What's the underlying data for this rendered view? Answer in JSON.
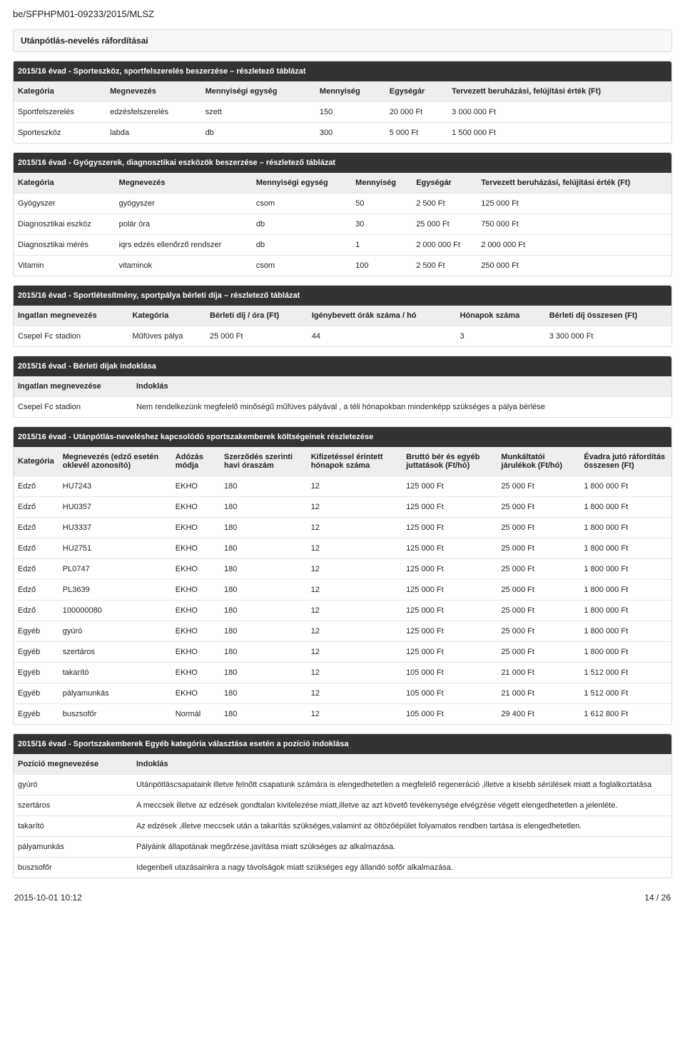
{
  "doc_id": "be/SFPHPM01-09233/2015/MLSZ",
  "main_heading": "Utánpótlás-nevelés ráfordításai",
  "sporteszk": {
    "title": "2015/16 évad - Sporteszköz, sportfelszerelés beszerzése – részletező táblázat",
    "headers": [
      "Kategória",
      "Megnevezés",
      "Mennyiségi egység",
      "Mennyiség",
      "Egységár",
      "Tervezett beruházási, felújítási érték (Ft)"
    ],
    "rows": [
      [
        "Sportfelszerelés",
        "edzésfelszerelés",
        "szett",
        "150",
        "20 000 Ft",
        "3 000 000 Ft"
      ],
      [
        "Sporteszköz",
        "labda",
        "db",
        "300",
        "5 000 Ft",
        "1 500 000 Ft"
      ]
    ]
  },
  "gyogyszer": {
    "title": "2015/16 évad - Gyógyszerek, diagnosztikai eszközök beszerzése – részletező táblázat",
    "headers": [
      "Kategória",
      "Megnevezés",
      "Mennyiségi egység",
      "Mennyiség",
      "Egységár",
      "Tervezett beruházási, felújítási érték (Ft)"
    ],
    "rows": [
      [
        "Gyógyszer",
        "gyógyszer",
        "csom",
        "50",
        "2 500 Ft",
        "125 000 Ft"
      ],
      [
        "Diagnosztikai eszköz",
        "polár óra",
        "db",
        "30",
        "25 000 Ft",
        "750 000 Ft"
      ],
      [
        "Diagnosztikai mérés",
        "iqrs edzés ellenőrző rendszer",
        "db",
        "1",
        "2 000 000 Ft",
        "2 000 000 Ft"
      ],
      [
        "Vitamin",
        "vitaminok",
        "csom",
        "100",
        "2 500 Ft",
        "250 000 Ft"
      ]
    ]
  },
  "berlet": {
    "title": "2015/16 évad - Sportlétesítmény, sportpálya bérleti díja – részletező táblázat",
    "headers": [
      "Ingatlan megnevezés",
      "Kategória",
      "Bérleti díj / óra (Ft)",
      "Igénybevett órák száma / hó",
      "Hónapok száma",
      "Bérleti díj összesen (Ft)"
    ],
    "rows": [
      [
        "Csepel Fc stadion",
        "Műfüves pálya",
        "25 000 Ft",
        "44",
        "3",
        "3 300 000 Ft"
      ]
    ]
  },
  "berlet_ind": {
    "title": "2015/16 évad - Bérleti díjak indoklása",
    "headers": [
      "Ingatlan megnevezése",
      "Indoklás"
    ],
    "rows": [
      [
        "Csepel Fc stadion",
        "Nem rendelkezünk megfelelő minőségű műfüves pályával , a téli hónapokban mindenképp szükséges a pálya bérlése"
      ]
    ]
  },
  "szakember": {
    "title": "2015/16 évad - Utánpótlás-neveléshez kapcsolódó sportszakemberek költségeinek részletezése",
    "headers": [
      "Kategória",
      "Megnevezés (edző esetén oklevél azonosító)",
      "Adózás módja",
      "Szerződés szerinti havi óraszám",
      "Kifizetéssel érintett hónapok száma",
      "Bruttó bér és egyéb juttatások (Ft/hó)",
      "Munkáltatói járulékok (Ft/hó)",
      "Évadra jutó ráfordítás összesen (Ft)"
    ],
    "rows": [
      [
        "Edző",
        "HU7243",
        "EKHO",
        "180",
        "12",
        "125 000 Ft",
        "25 000 Ft",
        "1 800 000 Ft"
      ],
      [
        "Edző",
        "HU0357",
        "EKHO",
        "180",
        "12",
        "125 000 Ft",
        "25 000 Ft",
        "1 800 000 Ft"
      ],
      [
        "Edző",
        "HU3337",
        "EKHO",
        "180",
        "12",
        "125 000 Ft",
        "25 000 Ft",
        "1 800 000 Ft"
      ],
      [
        "Edző",
        "HU2751",
        "EKHO",
        "180",
        "12",
        "125 000 Ft",
        "25 000 Ft",
        "1 800 000 Ft"
      ],
      [
        "Edző",
        "PL0747",
        "EKHO",
        "180",
        "12",
        "125 000 Ft",
        "25 000 Ft",
        "1 800 000 Ft"
      ],
      [
        "Edző",
        "PL3639",
        "EKHO",
        "180",
        "12",
        "125 000 Ft",
        "25 000 Ft",
        "1 800 000 Ft"
      ],
      [
        "Edző",
        "100000080",
        "EKHO",
        "180",
        "12",
        "125 000 Ft",
        "25 000 Ft",
        "1 800 000 Ft"
      ],
      [
        "Egyéb",
        "gyúró",
        "EKHO",
        "180",
        "12",
        "125 000 Ft",
        "25 000 Ft",
        "1 800 000 Ft"
      ],
      [
        "Egyéb",
        "szertáros",
        "EKHO",
        "180",
        "12",
        "125 000 Ft",
        "25 000 Ft",
        "1 800 000 Ft"
      ],
      [
        "Egyéb",
        "takarító",
        "EKHO",
        "180",
        "12",
        "105 000 Ft",
        "21 000 Ft",
        "1 512 000 Ft"
      ],
      [
        "Egyéb",
        "pályamunkás",
        "EKHO",
        "180",
        "12",
        "105 000 Ft",
        "21 000 Ft",
        "1 512 000 Ft"
      ],
      [
        "Egyéb",
        "buszsofőr",
        "Normál",
        "180",
        "12",
        "105 000 Ft",
        "29 400 Ft",
        "1 612 800 Ft"
      ]
    ]
  },
  "egyeb_ind": {
    "title": "2015/16 évad - Sportszakemberek Egyéb kategória választása esetén a pozíció indoklása",
    "headers": [
      "Pozíció megnevezése",
      "Indoklás"
    ],
    "rows": [
      [
        "gyúró",
        "Utánpótláscsapataink illetve felnőtt csapatunk számára is elengedhetetlen a megfelelő regeneráció ,illetve a kisebb sérülések miatt a foglalkoztatása"
      ],
      [
        "szertáros",
        "A meccsek illetve az edzések gondtalan kivitelezése miatt,illetve az azt követő tevékenysége elvégzése végett elengedhetetlen a jelenléte."
      ],
      [
        "takarító",
        "Az edzések ,illetve meccsek után a takarítás szükséges,valamint az öltözőépület folyamatos rendben tartása is elengedhetetlen."
      ],
      [
        "pályamunkás",
        "Pályáink állapotának megőrzése,javítása miatt szükséges az alkalmazása."
      ],
      [
        "buszsofőr",
        "Idegenbeli utazásainkra a nagy távolságok miatt szükséges egy állandó sofőr alkalmazása."
      ]
    ]
  },
  "footer": {
    "left": "2015-10-01 10:12",
    "right": "14 / 26"
  }
}
